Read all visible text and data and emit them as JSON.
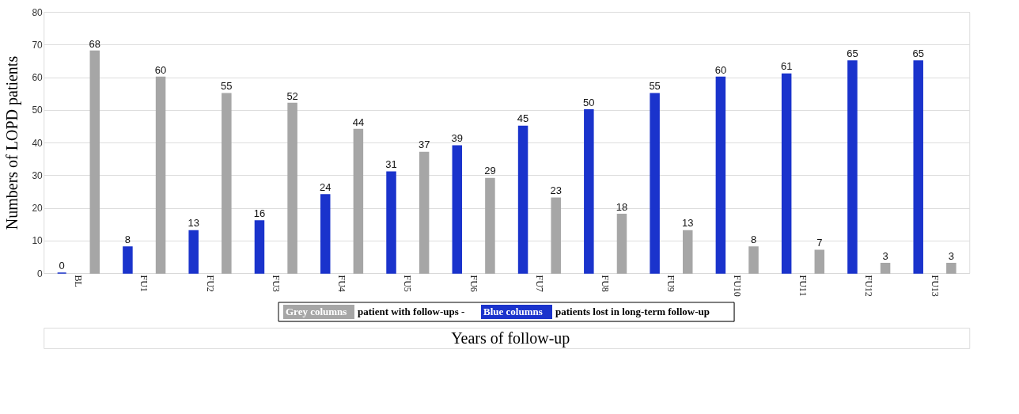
{
  "chart_data": {
    "type": "bar",
    "xlabel": "Years of follow-up",
    "ylabel": "Numbers of LOPD patients",
    "categories": [
      "BL",
      "FU1",
      "FU2",
      "FU3",
      "FU4",
      "FU5",
      "FU6",
      "FU7",
      "FU8",
      "FU9",
      "FU10",
      "FU11",
      "FU12",
      "FU13"
    ],
    "series": [
      {
        "name": "Blue columns",
        "color": "#1a33cc",
        "values": [
          0,
          8,
          13,
          16,
          24,
          31,
          39,
          45,
          50,
          55,
          60,
          61,
          65,
          65
        ]
      },
      {
        "name": "Grey columns",
        "color": "#a6a6a6",
        "values": [
          68,
          60,
          55,
          52,
          44,
          37,
          29,
          23,
          18,
          13,
          8,
          7,
          3,
          3
        ]
      }
    ],
    "annotations": [
      "patient with follow-ups -",
      "patients lost in long-term follow-up"
    ],
    "ylim": [
      0,
      80
    ],
    "yticks": [
      0,
      10,
      20,
      30,
      40,
      50,
      60,
      70,
      80
    ],
    "grid": "y",
    "data_labels": true,
    "legend": "bottom"
  }
}
